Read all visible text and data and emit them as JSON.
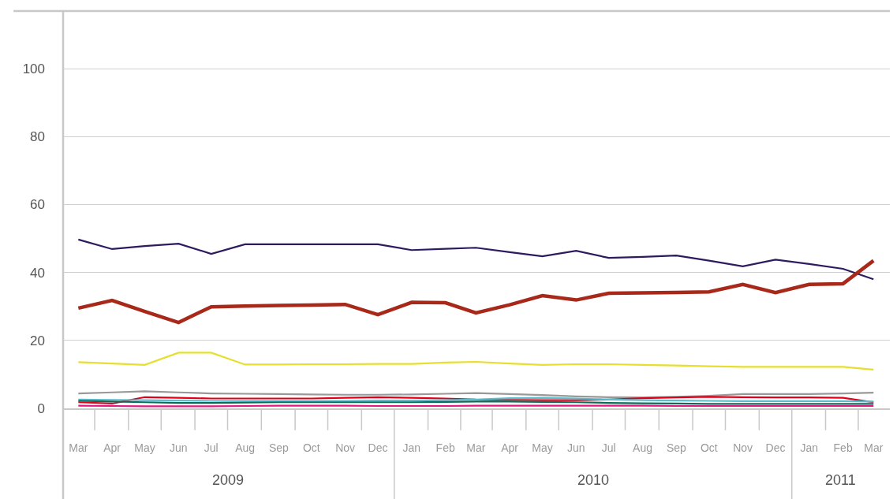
{
  "chart_data": {
    "type": "line",
    "x": [
      "2009-03",
      "2009-04",
      "2009-05",
      "2009-06",
      "2009-07",
      "2009-08",
      "2009-09",
      "2009-10",
      "2009-11",
      "2009-12",
      "2010-01",
      "2010-02",
      "2010-03",
      "2010-04",
      "2010-05",
      "2010-06",
      "2010-07",
      "2010-08",
      "2010-09",
      "2010-10",
      "2010-11",
      "2010-12",
      "2011-01",
      "2011-02",
      "2011-03"
    ],
    "xlim": [
      "2009-02-15",
      "2011-03-16"
    ],
    "xticks": [
      {
        "value": "2009-03",
        "label": "Mar"
      },
      {
        "value": "2009-04",
        "label": "Apr"
      },
      {
        "value": "2009-05",
        "label": "May"
      },
      {
        "value": "2009-06",
        "label": "Jun"
      },
      {
        "value": "2009-07",
        "label": "Jul"
      },
      {
        "value": "2009-08",
        "label": "Aug"
      },
      {
        "value": "2009-09",
        "label": "Sep"
      },
      {
        "value": "2009-10",
        "label": "Oct"
      },
      {
        "value": "2009-11",
        "label": "Nov"
      },
      {
        "value": "2009-12",
        "label": "Dec"
      },
      {
        "value": "2010-01",
        "label": "Jan"
      },
      {
        "value": "2010-02",
        "label": "Feb"
      },
      {
        "value": "2010-03",
        "label": "Mar"
      },
      {
        "value": "2010-04",
        "label": "Apr"
      },
      {
        "value": "2010-05",
        "label": "May"
      },
      {
        "value": "2010-06",
        "label": "Jun"
      },
      {
        "value": "2010-07",
        "label": "Jul"
      },
      {
        "value": "2010-08",
        "label": "Aug"
      },
      {
        "value": "2010-09",
        "label": "Sep"
      },
      {
        "value": "2010-10",
        "label": "Oct"
      },
      {
        "value": "2010-11",
        "label": "Nov"
      },
      {
        "value": "2010-12",
        "label": "Dec"
      },
      {
        "value": "2011-01",
        "label": "Jan"
      },
      {
        "value": "2011-02",
        "label": "Feb"
      },
      {
        "value": "2011-03",
        "label": "Mar"
      }
    ],
    "ylim": [
      0,
      117
    ],
    "yticks": [
      0,
      20,
      40,
      60,
      80,
      100
    ],
    "grid": "y",
    "annotations": [
      "2009",
      "2010",
      "2011"
    ],
    "series": [
      {
        "color": "#2e1a5e",
        "values": [
          49.7,
          46.9,
          47.8,
          48.5,
          45.5,
          48.3,
          48.3,
          48.3,
          48.3,
          48.3,
          46.6,
          47.0,
          47.3,
          46.0,
          44.8,
          46.4,
          44.3,
          44.6,
          45.0,
          43.5,
          41.8,
          43.8,
          42.5,
          41.1,
          38.0
        ]
      },
      {
        "color": "#a8281a",
        "values": [
          29.5,
          31.8,
          28.5,
          25.3,
          29.9,
          30.1,
          30.3,
          30.4,
          30.6,
          27.6,
          31.2,
          31.1,
          28.1,
          30.5,
          33.2,
          31.9,
          33.9,
          34.0,
          34.1,
          34.3,
          36.5,
          34.1,
          36.5,
          36.7,
          43.5
        ]
      },
      {
        "color": "#e6df2e",
        "values": [
          13.6,
          13.2,
          12.8,
          16.4,
          16.4,
          12.9,
          12.9,
          13.0,
          13.0,
          13.1,
          13.1,
          13.5,
          13.7,
          13.2,
          12.8,
          13.0,
          13.0,
          12.8,
          12.6,
          12.4,
          12.2,
          12.2,
          12.2,
          12.2,
          11.4
        ]
      },
      {
        "color": "#999999",
        "values": [
          4.4,
          4.7,
          5.0,
          4.7,
          4.4,
          4.3,
          4.2,
          4.1,
          4.0,
          4.0,
          4.1,
          4.3,
          4.5,
          4.2,
          3.9,
          3.5,
          3.3,
          3.2,
          3.4,
          3.7,
          4.2,
          4.2,
          4.2,
          4.4,
          4.6
        ]
      },
      {
        "color": "#e3001b",
        "values": [
          1.8,
          1.4,
          3.3,
          3.1,
          2.9,
          2.9,
          2.9,
          2.9,
          3.1,
          3.3,
          3.1,
          2.9,
          2.6,
          2.5,
          2.4,
          2.4,
          2.6,
          3.0,
          3.2,
          3.4,
          3.3,
          3.2,
          3.2,
          3.1,
          1.8
        ]
      },
      {
        "color": "#5bbccc",
        "values": [
          2.6,
          2.5,
          2.4,
          2.3,
          2.2,
          2.2,
          2.2,
          2.2,
          2.2,
          2.3,
          2.3,
          2.4,
          2.6,
          3.0,
          3.1,
          2.9,
          2.6,
          2.4,
          2.3,
          2.2,
          2.1,
          2.1,
          2.1,
          2.1,
          2.0
        ]
      },
      {
        "color": "#0e6b5a",
        "values": [
          2.2,
          2.0,
          1.8,
          1.6,
          1.6,
          1.7,
          1.8,
          1.8,
          1.8,
          1.8,
          1.8,
          1.9,
          2.0,
          2.0,
          1.9,
          1.8,
          1.6,
          1.5,
          1.4,
          1.3,
          1.3,
          1.3,
          1.3,
          1.3,
          1.3
        ]
      },
      {
        "color": "#e5177e",
        "values": [
          0.8,
          0.7,
          0.6,
          0.6,
          0.6,
          0.7,
          0.8,
          0.8,
          0.8,
          0.7,
          0.7,
          0.7,
          0.8,
          0.8,
          0.8,
          0.8,
          0.8,
          0.8,
          0.7,
          0.7,
          0.7,
          0.7,
          0.7,
          0.7,
          0.7
        ]
      }
    ]
  }
}
